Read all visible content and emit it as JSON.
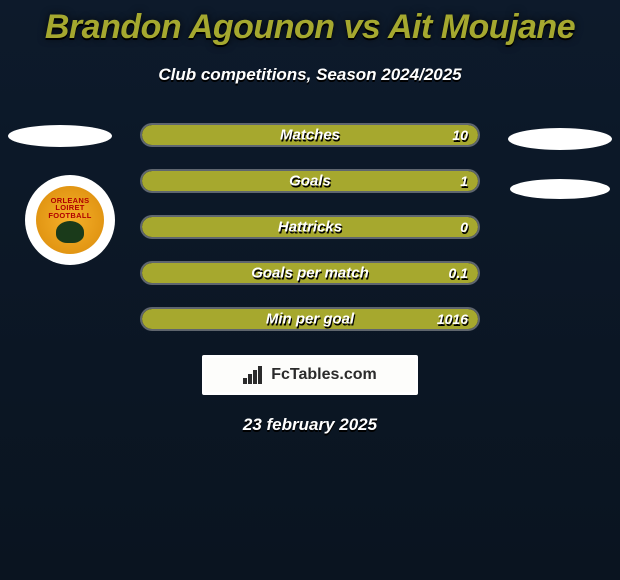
{
  "title": "Brandon Agounon vs Ait Moujane",
  "subtitle": "Club competitions, Season 2024/2025",
  "date": "23 february 2025",
  "colors": {
    "title": "#a5a82f",
    "bar_fill": "#a6a82e",
    "background_top": "#0d1a2b",
    "background_bottom": "#0a1420",
    "border": "rgba(255,255,255,0.35)",
    "text": "#ffffff"
  },
  "stats": [
    {
      "label": "Matches",
      "value": "10",
      "fill_pct": 100
    },
    {
      "label": "Goals",
      "value": "1",
      "fill_pct": 100
    },
    {
      "label": "Hattricks",
      "value": "0",
      "fill_pct": 100
    },
    {
      "label": "Goals per match",
      "value": "0.1",
      "fill_pct": 100
    },
    {
      "label": "Min per goal",
      "value": "1016",
      "fill_pct": 100
    }
  ],
  "brand": {
    "name": "FcTables.com"
  },
  "badge": {
    "line1": "ORLEANS",
    "line2": "LOIRET",
    "line3": "FOOTBALL"
  }
}
